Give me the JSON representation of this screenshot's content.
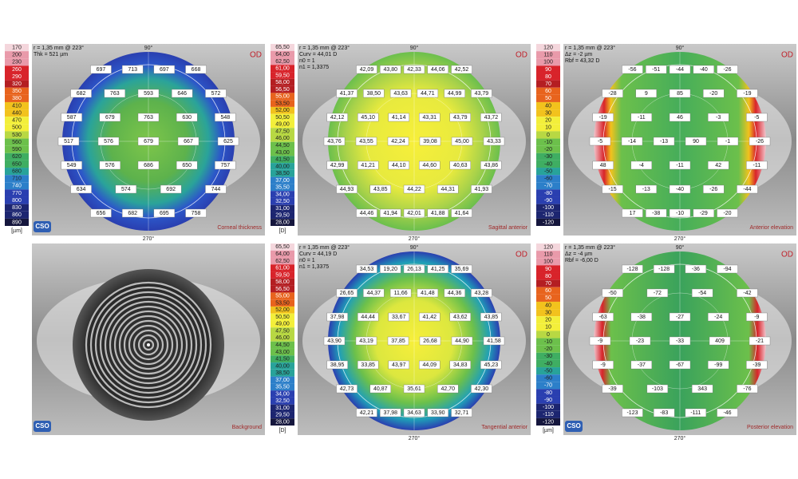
{
  "brand": "CSO",
  "panels": [
    {
      "kind": "thickness",
      "title": "Corneal thickness",
      "side": "OD",
      "top": "90°",
      "bottom": "270°",
      "info": [
        "r = 1,35 mm @ 223°",
        "Thk = 521 µm"
      ],
      "scale": [
        170,
        200,
        230,
        260,
        290,
        320,
        350,
        380,
        410,
        440,
        470,
        500,
        530,
        560,
        590,
        620,
        650,
        680,
        710,
        740,
        770,
        800,
        830,
        860,
        890
      ],
      "unit": "[µm]",
      "values": [
        697,
        713,
        697,
        668,
        682,
        763,
        593,
        646,
        572,
        587,
        679,
        763,
        630,
        548,
        517,
        576,
        679,
        667,
        625,
        549,
        576,
        686,
        650,
        757,
        634,
        574,
        692,
        744,
        656,
        682,
        695,
        758
      ]
    },
    {
      "kind": "sagittal",
      "title": "Sagittal anterior",
      "side": "OD",
      "top": "90°",
      "bottom": "270°",
      "info": [
        "r = 1,35 mm @ 223°",
        "Curv = 44,01 D",
        "n0 = 1",
        "n1 = 1,3375"
      ],
      "scale": [
        "65,50",
        "64,00",
        "62,50",
        "61,00",
        "59,50",
        "58,00",
        "56,50",
        "55,00",
        "53,50",
        "52,00",
        "50,50",
        "49,00",
        "47,50",
        "46,00",
        "44,50",
        "43,00",
        "41,50",
        "40,00",
        "38,50",
        "37,00",
        "35,50",
        "34,00",
        "32,50",
        "31,00",
        "29,50",
        "28,00"
      ],
      "unit": "[D]",
      "values": [
        "42,09",
        "43,80",
        "42,33",
        "44,06",
        "42,52",
        "41,37",
        "38,50",
        "43,63",
        "44,71",
        "44,99",
        "43,79",
        "42,12",
        "45,10",
        "41,14",
        "43,31",
        "43,79",
        "43,72",
        "43,76",
        "43,55",
        "42,24",
        "39,08",
        "45,00",
        "43,33",
        "42,99",
        "41,21",
        "44,10",
        "44,60",
        "40,63",
        "43,86",
        "44,93",
        "43,85",
        "44,22",
        "44,31",
        "41,93",
        "44,46",
        "41,94",
        "42,01",
        "41,88",
        "41,64"
      ]
    },
    {
      "kind": "elevation",
      "title": "Anterior elevation",
      "side": "OD",
      "top": "90°",
      "bottom": "270°",
      "info": [
        "r = 1,35 mm @ 223°",
        "Δz = -2 µm",
        "Rbf = 43,32 D"
      ],
      "scale": [
        120,
        110,
        100,
        90,
        80,
        70,
        60,
        50,
        40,
        30,
        20,
        10,
        0,
        -10,
        -20,
        -30,
        -40,
        -50,
        -60,
        -70,
        -80,
        -90,
        -100,
        -110,
        -120
      ],
      "values": [
        -56,
        -51,
        -44,
        -40,
        -26,
        -28,
        9,
        85,
        -20,
        -19,
        -19,
        -11,
        46,
        -3,
        -5,
        -5,
        -14,
        -13,
        90,
        -1,
        -26,
        48,
        -4,
        -11,
        42,
        -11,
        -15,
        -13,
        -40,
        -26,
        -44,
        17,
        -38,
        -10,
        -29,
        -20
      ]
    },
    {
      "kind": "background",
      "title": "Background"
    },
    {
      "kind": "tangential",
      "title": "Tangential anterior",
      "side": "OD",
      "top": "90°",
      "bottom": "270°",
      "info": [
        "r = 1,35 mm @ 223°",
        "Curv = 44,19 D",
        "n0 = 1",
        "n1 = 1,3375"
      ],
      "scale": [
        "65,50",
        "64,00",
        "62,50",
        "61,00",
        "59,50",
        "58,00",
        "56,50",
        "55,00",
        "53,50",
        "52,00",
        "50,50",
        "49,00",
        "47,50",
        "46,00",
        "44,50",
        "43,00",
        "41,50",
        "40,00",
        "38,50",
        "37,00",
        "35,50",
        "34,00",
        "32,50",
        "31,00",
        "29,50",
        "28,00"
      ],
      "unit": "[D]",
      "values": [
        "34,53",
        "19,20",
        "26,13",
        "41,25",
        "35,69",
        "26,65",
        "44,37",
        "11,66",
        "41,48",
        "44,36",
        "43,28",
        "37,98",
        "44,44",
        "33,67",
        "41,42",
        "43,62",
        "43,85",
        "43,90",
        "43,19",
        "37,85",
        "26,68",
        "44,90",
        "41,58",
        "38,95",
        "33,85",
        "43,97",
        "44,09",
        "34,83",
        "45,23",
        "42,73",
        "40,87",
        "35,61",
        "42,70",
        "42,30",
        "42,21",
        "37,98",
        "34,63",
        "33,90",
        "32,71"
      ]
    },
    {
      "kind": "elevation2",
      "title": "Posterior elevation",
      "side": "OD",
      "top": "90°",
      "bottom": "270°",
      "info": [
        "r = 1,35 mm @ 223°",
        "Δz = -4 µm",
        "Rbf = -6,00 D"
      ],
      "scale": [
        120,
        110,
        100,
        90,
        80,
        70,
        60,
        50,
        40,
        30,
        20,
        10,
        0,
        -10,
        -20,
        -30,
        -40,
        -50,
        -60,
        -70,
        -80,
        -90,
        -100,
        -110,
        -120
      ],
      "unit": "[µm]",
      "values": [
        -128,
        -128,
        -36,
        -94,
        -50,
        -72,
        -54,
        -42,
        -63,
        -38,
        -27,
        -24,
        -9,
        -9,
        -23,
        -33,
        409,
        -21,
        -9,
        -37,
        -67,
        -99,
        -39,
        -39,
        -103,
        343,
        -76,
        -123,
        -83,
        -111,
        -46
      ]
    }
  ]
}
